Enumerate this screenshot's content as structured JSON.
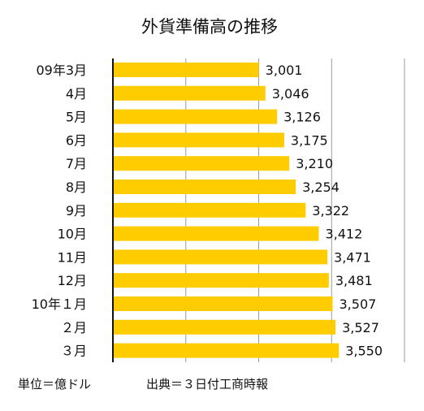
{
  "chart_data": {
    "type": "bar",
    "orientation": "horizontal",
    "title": "外貨準備高の推移",
    "categories": [
      "09年3月",
      "4月",
      "5月",
      "6月",
      "7月",
      "8月",
      "9月",
      "10月",
      "11月",
      "12月",
      "10年１月",
      "２月",
      "３月"
    ],
    "values": [
      3001,
      3046,
      3126,
      3175,
      3210,
      3254,
      3322,
      3412,
      3471,
      3481,
      3507,
      3527,
      3550
    ],
    "value_labels": [
      "3,001",
      "3,046",
      "3,126",
      "3,175",
      "3,210",
      "3,254",
      "3,322",
      "3,412",
      "3,471",
      "3,481",
      "3,507",
      "3,527",
      "3,550"
    ],
    "xlim": [
      2000,
      4000
    ],
    "grid": true,
    "bar_color": "#FFCC00"
  },
  "footer": {
    "unit": "単位＝億ドル",
    "source": "出典＝３日付工商時報"
  }
}
